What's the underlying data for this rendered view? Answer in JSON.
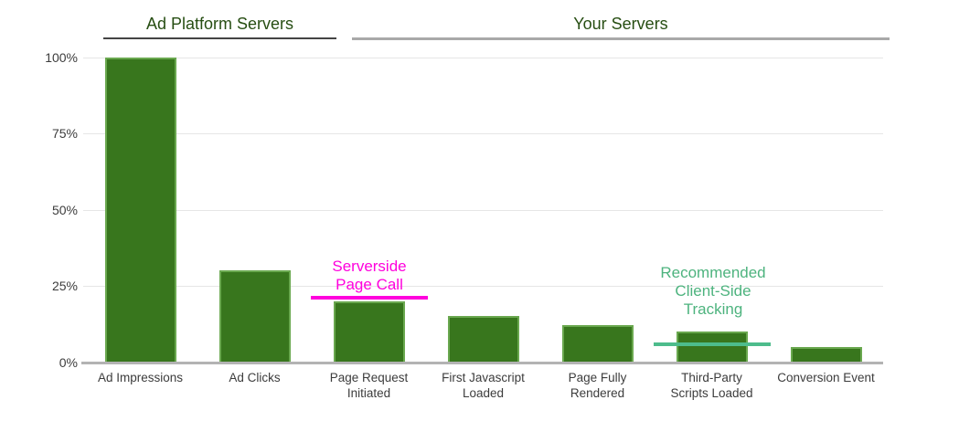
{
  "chart_data": {
    "type": "bar",
    "categories": [
      "Ad Impressions",
      "Ad Clicks",
      "Page Request\nInitiated",
      "First Javascript\nLoaded",
      "Page Fully\nRendered",
      "Third-Party\nScripts Loaded",
      "Conversion Event"
    ],
    "values": [
      100,
      30,
      20,
      15,
      12,
      10,
      5
    ],
    "title": "",
    "xlabel": "",
    "ylabel": "",
    "ylim": [
      0,
      100
    ],
    "yticks": [
      {
        "value": 0,
        "label": "0%"
      },
      {
        "value": 25,
        "label": "25%"
      },
      {
        "value": 50,
        "label": "50%"
      },
      {
        "value": 75,
        "label": "75%"
      },
      {
        "value": 100,
        "label": "100%"
      }
    ],
    "grid": true,
    "legend": "none",
    "bar_color": "#38761d",
    "bar_border_color": "#6aa84f"
  },
  "sections": {
    "ad_platform": {
      "label": "Ad Platform Servers",
      "underline_color": "#444444"
    },
    "your_servers": {
      "label": "Your Servers",
      "underline_color": "#a9a9a9"
    }
  },
  "annotations": [
    {
      "id": "serverside",
      "label": "Serverside\nPage Call",
      "text_color": "#ff00dd",
      "line_color": "#ff00dd",
      "bar_index": 2,
      "line_value_pct": 21
    },
    {
      "id": "recommended",
      "label": "Recommended\nClient-Side\nTracking",
      "text_color": "#4db37e",
      "line_color": "#4dbc8c",
      "bar_index": 5,
      "line_value_pct": 5.7
    }
  ],
  "colors": {
    "section_title": "#274e13",
    "gridline": "#e6e6e6",
    "axis_line": "#b3b3b3",
    "tick_label": "#3c3c3c",
    "x_label": "#3c3c3c",
    "background": "#ffffff"
  }
}
